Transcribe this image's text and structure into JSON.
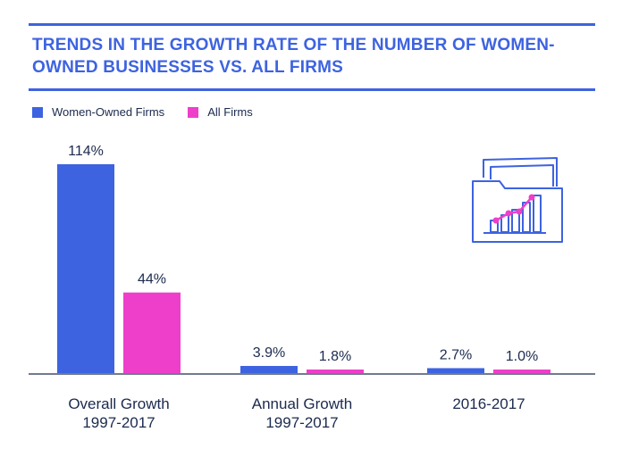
{
  "title": "TRENDS IN THE GROWTH RATE OF THE NUMBER OF WOMEN-OWNED BUSINESSES VS. ALL FIRMS",
  "colors": {
    "accent": "#3d63e0",
    "women": "#3d63e0",
    "all": "#ee3fca",
    "text": "#1b2a4e"
  },
  "legend": [
    {
      "label": "Women-Owned Firms",
      "color": "#3d63e0"
    },
    {
      "label": "All Firms",
      "color": "#ee3fca"
    }
  ],
  "icon": "folder-growth-chart-icon",
  "chart_data": {
    "type": "bar",
    "title": "TRENDS IN THE GROWTH RATE OF THE NUMBER OF WOMEN-OWNED BUSINESSES VS. ALL FIRMS",
    "categories": [
      [
        "Overall Growth",
        "1997-2017"
      ],
      [
        "Annual Growth",
        "1997-2017"
      ],
      [
        "2016-2017"
      ]
    ],
    "series": [
      {
        "name": "Women-Owned Firms",
        "values": [
          114,
          3.9,
          2.7
        ],
        "labels": [
          "114%",
          "3.9%",
          "2.7%"
        ]
      },
      {
        "name": "All Firms",
        "values": [
          44,
          1.8,
          1.0
        ],
        "labels": [
          "44%",
          "1.8%",
          "1.0%"
        ]
      }
    ],
    "ylim": [
      0,
      114
    ],
    "xlabel": "",
    "ylabel": "",
    "legend_position": "top-left",
    "grid": false
  }
}
